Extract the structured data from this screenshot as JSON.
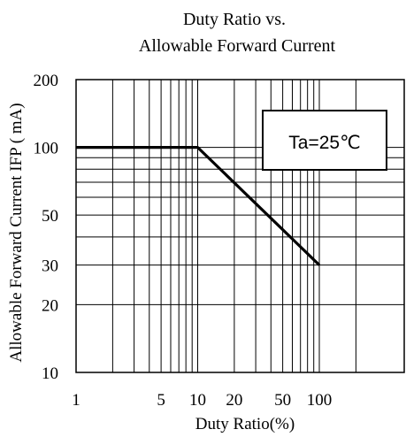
{
  "chart_data": {
    "type": "line",
    "title_lines": [
      "Duty Ratio vs.",
      "Allowable Forward Current"
    ],
    "xlabel": "Duty Ratio(%)",
    "ylabel": "Allowable Forward Current IFP ( mA)",
    "x_scale": "log",
    "y_scale": "log",
    "xlim": [
      1,
      200
    ],
    "ylim": [
      10,
      200
    ],
    "x_ticks": [
      1,
      5,
      10,
      20,
      50,
      100
    ],
    "x_tick_labels": [
      "1",
      "5",
      "10",
      "20",
      "50",
      "100"
    ],
    "y_ticks": [
      10,
      20,
      30,
      50,
      100,
      200
    ],
    "y_tick_labels": [
      "10",
      "20",
      "30",
      "50",
      "100",
      "200"
    ],
    "grid": true,
    "series": [
      {
        "x": [
          1,
          10,
          100
        ],
        "y": [
          100,
          100,
          30
        ]
      }
    ],
    "annotation": "Ta=25℃",
    "colors": {
      "line": "#000000",
      "grid": "#000000",
      "background": "#ffffff"
    }
  }
}
